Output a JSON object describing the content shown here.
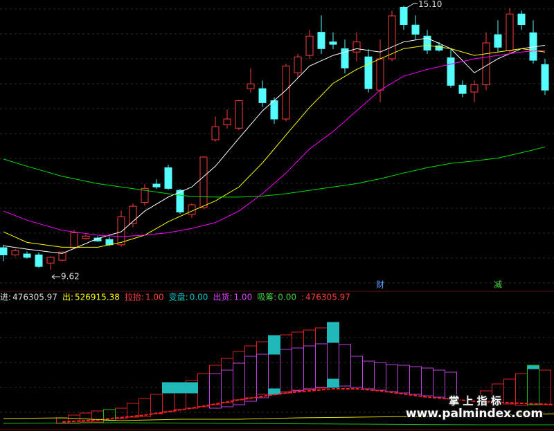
{
  "chart_data": [
    {
      "type": "candlestick",
      "ylim": [
        9.19,
        15.22
      ],
      "up_color": "#ff3c3c",
      "down_color": "#54fcfc",
      "open": [
        10.08,
        9.93,
        9.95,
        9.93,
        9.76,
        9.82,
        10.08,
        10.27,
        10.28,
        10.25,
        10.14,
        10.58,
        11.02,
        11.4,
        11.74,
        11.27,
        10.77,
        10.91,
        12.32,
        12.63,
        12.56,
        13.38,
        13.38,
        13.13,
        12.75,
        13.71,
        14.07,
        14.55,
        14.35,
        14.21,
        14.14,
        14.04,
        13.35,
        14.0,
        15.07,
        14.7,
        14.47,
        14.27,
        14.02,
        13.45,
        13.31,
        13.46,
        14.5,
        14.17,
        14.93,
        14.54,
        13.88
      ],
      "high": [
        10.14,
        10.05,
        10.0,
        9.98,
        9.9,
        10.0,
        10.45,
        10.36,
        10.32,
        10.3,
        10.85,
        11.0,
        11.4,
        11.5,
        11.8,
        11.3,
        11.0,
        11.98,
        12.8,
        12.95,
        13.15,
        13.8,
        13.55,
        13.2,
        13.9,
        14.1,
        14.6,
        14.9,
        14.55,
        14.4,
        14.55,
        14.2,
        14.4,
        15.0,
        15.1,
        14.9,
        14.6,
        14.35,
        14.2,
        13.55,
        13.55,
        14.55,
        14.8,
        15.05,
        15.0,
        14.8,
        14.0
      ],
      "low": [
        9.8,
        9.9,
        9.85,
        9.66,
        9.62,
        9.8,
        10.05,
        10.25,
        10.2,
        10.12,
        10.1,
        10.5,
        10.95,
        11.3,
        11.28,
        10.78,
        10.7,
        10.88,
        12.28,
        12.55,
        12.52,
        13.3,
        13.0,
        12.65,
        12.7,
        13.6,
        14.0,
        14.1,
        14.2,
        13.7,
        13.95,
        13.3,
        13.1,
        13.95,
        14.6,
        14.4,
        14.1,
        14.15,
        13.4,
        13.2,
        13.1,
        13.35,
        14.15,
        14.1,
        14.6,
        13.9,
        13.25
      ],
      "close": [
        9.93,
        10.02,
        9.88,
        9.69,
        9.88,
        9.99,
        10.39,
        10.32,
        10.22,
        10.14,
        10.72,
        10.94,
        11.31,
        11.34,
        11.31,
        10.82,
        10.97,
        11.96,
        12.59,
        12.75,
        13.13,
        13.48,
        13.09,
        12.75,
        13.85,
        14.04,
        14.47,
        14.21,
        14.3,
        13.81,
        14.35,
        13.38,
        14.0,
        14.89,
        14.71,
        14.51,
        14.18,
        14.18,
        13.45,
        13.28,
        13.46,
        14.33,
        14.24,
        14.93,
        14.71,
        13.97,
        13.35
      ],
      "series": [
        {
          "color": "#ffffff",
          "x": [
            0,
            2,
            5,
            8,
            10,
            12,
            14,
            16,
            18,
            20,
            22,
            24,
            26,
            28,
            30,
            32,
            34,
            36,
            38,
            40,
            42,
            44,
            46
          ],
          "values": [
            10.12,
            10.05,
            9.96,
            10.27,
            10.41,
            10.84,
            11.13,
            11.34,
            11.77,
            12.35,
            12.92,
            13.35,
            13.85,
            14.07,
            14.21,
            14.14,
            14.35,
            14.43,
            14.21,
            13.71,
            14.0,
            14.21,
            14.28
          ]
        },
        {
          "color": "#ffff00",
          "x": [
            0,
            2,
            5,
            8,
            10,
            12,
            14,
            16,
            18,
            20,
            22,
            24,
            26,
            28,
            30,
            32,
            34,
            36,
            38,
            40,
            42,
            44,
            46
          ],
          "values": [
            10.41,
            10.19,
            10.09,
            10.09,
            10.19,
            10.34,
            10.62,
            10.84,
            11.05,
            11.34,
            11.84,
            12.42,
            12.99,
            13.49,
            13.78,
            14.0,
            14.21,
            14.28,
            14.21,
            14.07,
            14.14,
            14.21,
            14.14
          ]
        },
        {
          "color": "#ff00ff",
          "x": [
            0,
            2,
            5,
            8,
            10,
            12,
            14,
            16,
            18,
            20,
            22,
            24,
            26,
            28,
            30,
            32,
            34,
            36,
            38,
            40,
            42,
            44,
            46
          ],
          "values": [
            10.84,
            10.65,
            10.44,
            10.34,
            10.31,
            10.34,
            10.39,
            10.48,
            10.6,
            10.84,
            11.2,
            11.63,
            12.13,
            12.49,
            12.92,
            13.35,
            13.64,
            13.78,
            13.89,
            14.0,
            14.07,
            14.14,
            14.18
          ]
        },
        {
          "color": "#00e000",
          "x": [
            0,
            2,
            5,
            8,
            10,
            12,
            14,
            16,
            18,
            20,
            22,
            24,
            26,
            28,
            30,
            32,
            34,
            36,
            38,
            40,
            42,
            44,
            46
          ],
          "values": [
            11.92,
            11.77,
            11.56,
            11.41,
            11.34,
            11.27,
            11.2,
            11.14,
            11.13,
            11.13,
            11.15,
            11.2,
            11.27,
            11.34,
            11.41,
            11.51,
            11.63,
            11.74,
            11.83,
            11.88,
            11.94,
            12.05,
            12.17
          ]
        }
      ],
      "annotations": [
        {
          "index": 34,
          "value": 15.1,
          "label": "15.10"
        },
        {
          "index": 4,
          "value": 9.62,
          "label": "9.62"
        }
      ],
      "signals": [
        {
          "index": 32,
          "text": "财",
          "color": "#5aa0ff"
        },
        {
          "index": 42,
          "text": "减",
          "color": "#40e040"
        }
      ]
    },
    {
      "type": "indicator",
      "ylim": [
        0,
        180
      ],
      "legend": [
        {
          "name": "进:",
          "value": 476305.97,
          "color": "#dddddd"
        },
        {
          "name": "出:",
          "value": 526915.38,
          "color": "#ffff00"
        },
        {
          "name": "拉抬:",
          "value": 1,
          "label": "1.00",
          "color": "#ff3c3c"
        },
        {
          "name": "变盘:",
          "value": 0,
          "label": "0.00",
          "color": "#00c8c8"
        },
        {
          "name": "出货:",
          "value": 1,
          "label": "1.00",
          "color": "#e040ff"
        },
        {
          "name": "吸筹:",
          "value": 0,
          "label": "0.00",
          "color": "#40d040"
        },
        {
          "name": ":",
          "value": 476305.97,
          "color": "#ff3c3c"
        }
      ],
      "boxes": [
        {
          "color": "#e02020",
          "fill": false,
          "index": [
            5,
            6,
            7,
            8,
            10,
            11,
            12,
            13,
            14,
            15,
            16,
            17,
            18,
            19,
            20,
            21,
            22,
            23,
            24,
            25,
            26,
            27,
            28,
            41,
            42,
            43,
            44,
            46
          ],
          "top": [
            16,
            20,
            23,
            26,
            30,
            37,
            44,
            50,
            57,
            62,
            70,
            80,
            92,
            102,
            112,
            120,
            126,
            132,
            136,
            140,
            143,
            146,
            148,
            55,
            65,
            72,
            80,
            85
          ],
          "bottom": [
            8,
            8,
            10,
            10,
            15,
            17,
            18,
            22,
            25,
            28,
            30,
            32,
            35,
            38,
            42,
            45,
            50,
            52,
            54,
            56,
            57,
            59,
            60,
            40,
            38,
            36,
            34,
            35
          ]
        },
        {
          "color": "#c040e0",
          "fill": false,
          "index": [
            18,
            19,
            20,
            21,
            22,
            23,
            24,
            25,
            26,
            27,
            28,
            29,
            30,
            31,
            32,
            33,
            34,
            35,
            36,
            37,
            38
          ],
          "top": [
            80,
            85,
            95,
            105,
            108,
            110,
            115,
            117,
            120,
            123,
            125,
            122,
            105,
            98,
            96,
            93,
            92,
            90,
            88,
            85,
            82
          ],
          "bottom": [
            30,
            32,
            35,
            40,
            45,
            50,
            52,
            55,
            58,
            60,
            62,
            62,
            60,
            58,
            56,
            54,
            52,
            50,
            48,
            46,
            44
          ]
        },
        {
          "color": "#20b8b8",
          "fill": true,
          "index": [
            14,
            15,
            16,
            23,
            28,
            23,
            28,
            45
          ],
          "top": [
            67,
            67,
            67,
            135,
            154,
            58,
            72,
            92
          ],
          "bottom": [
            52,
            52,
            52,
            108,
            125,
            50,
            60,
            87
          ]
        },
        {
          "color": "#20c020",
          "fill": false,
          "index": [
            9,
            45
          ],
          "top": [
            28,
            92
          ],
          "bottom": [
            12,
            35
          ]
        }
      ],
      "series": [
        {
          "color": "#ff2020",
          "dashed": true,
          "x": [
            5,
            8,
            12,
            16,
            20,
            24,
            28,
            30,
            32,
            36,
            40,
            44,
            47
          ],
          "values": [
            10,
            13,
            20,
            30,
            42,
            52,
            58,
            58,
            55,
            46,
            40,
            37,
            35
          ]
        },
        {
          "color": "#e0e000",
          "dashed": false,
          "x": [
            0,
            5,
            10,
            15,
            20,
            25,
            30,
            35,
            40,
            47
          ],
          "values": [
            15,
            16,
            12,
            14,
            14,
            16,
            17,
            18,
            20,
            22
          ]
        },
        {
          "color": "#20c020",
          "dashed": false,
          "x": [
            0,
            10,
            20,
            30,
            40,
            47
          ],
          "values": [
            8,
            9,
            8,
            7,
            6,
            6
          ]
        }
      ]
    }
  ],
  "watermark": {
    "cn": "掌 上 指 标",
    "url": "www.palmindex.com"
  }
}
